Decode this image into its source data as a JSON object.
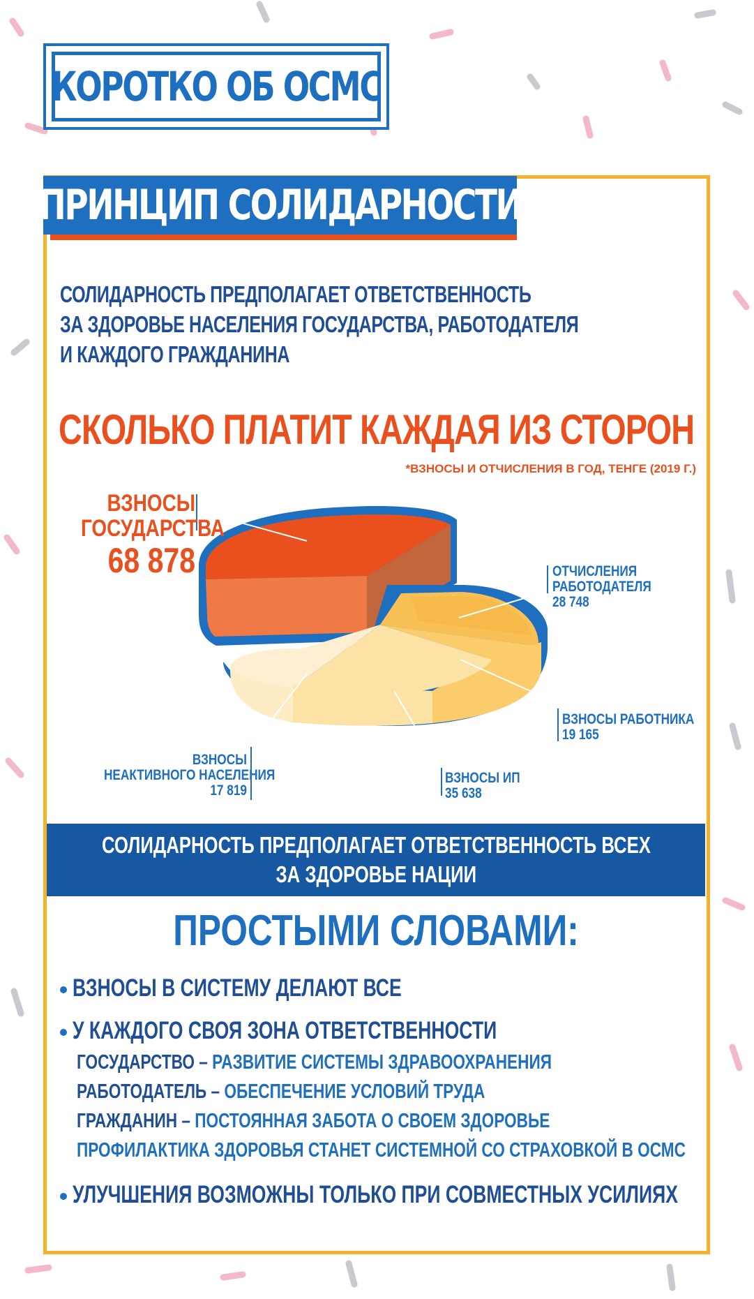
{
  "header": {
    "title": "КОРОТКО ОБ ОСМС"
  },
  "section": {
    "title": "ПРИНЦИП СОЛИДАРНОСТИ"
  },
  "intro": {
    "lines": [
      "СОЛИДАРНОСТЬ ПРЕДПОЛАГАЕТ ОТВЕТСТВЕННОСТЬ",
      "ЗА ЗДОРОВЬЕ НАСЕЛЕНИЯ ГОСУДАРСТВА, РАБОТОДАТЕЛЯ",
      "И КАЖДОГО ГРАЖДАНИНА"
    ]
  },
  "chart_data": {
    "type": "pie",
    "title": "СКОЛЬКО ПЛАТИТ КАЖДАЯ ИЗ СТОРОН",
    "subtitle": "*ВЗНОСЫ И ОТЧИСЛЕНИЯ В ГОД, ТЕНГЕ (2019 Г.)",
    "slices": [
      {
        "label_lines": [
          "ВЗНОСЫ",
          "ГОСУДАРСТВА"
        ],
        "value_text": "68 878",
        "value": 68878,
        "color": "#e9501d",
        "exploded": true
      },
      {
        "label_lines": [
          "ОТЧИСЛЕНИЯ",
          "РАБОТОДАТЕЛЯ"
        ],
        "value_text": "28 748",
        "value": 28748,
        "color": "#f9c055"
      },
      {
        "label_lines": [
          "ВЗНОСЫ РАБОТНИКА"
        ],
        "value_text": "19 165",
        "value": 19165,
        "color": "#fbcc6b"
      },
      {
        "label_lines": [
          "ВЗНОСЫ ИП"
        ],
        "value_text": "35 638",
        "value": 35638,
        "color": "#fde2a6"
      },
      {
        "label_lines": [
          "ВЗНОСЫ",
          "НЕАКТИВНОГО НАСЕЛЕНИЯ"
        ],
        "value_text": "17 819",
        "value": 17819,
        "color": "#feecc4"
      }
    ],
    "legend": "none"
  },
  "banner": {
    "lines": [
      "СОЛИДАРНОСТЬ ПРЕДПОЛАГАЕТ ОТВЕТСТВЕННОСТЬ ВСЕХ",
      "ЗА ЗДОРОВЬЕ НАЦИИ"
    ]
  },
  "simple": {
    "title": "ПРОСТЫМИ СЛОВАМИ:",
    "bullet1": "ВЗНОСЫ В СИСТЕМУ ДЕЛАЮТ ВСЕ",
    "bullet2": "У КАЖДОГО СВОЯ ЗОНА ОТВЕТСТВЕННОСТИ",
    "responsibilities": [
      {
        "key": "ГОСУДАРСТВО – ",
        "value": "РАЗВИТИЕ СИСТЕМЫ ЗДРАВООХРАНЕНИЯ"
      },
      {
        "key": "РАБОТОДАТЕЛЬ – ",
        "value": "ОБЕСПЕЧЕНИЕ УСЛОВИЙ ТРУДА"
      },
      {
        "key": "ГРАЖДАНИН – ",
        "value": "ПОСТОЯННАЯ ЗАБОТА О СВОЕМ ЗДОРОВЬЕ"
      }
    ],
    "prevention": "ПРОФИЛАКТИКА ЗДОРОВЬЯ СТАНЕТ СИСТЕМНОЙ СО СТРАХОВКОЙ В ОСМС",
    "bullet3": "УЛУЧШЕНИЯ ВОЗМОЖНЫ ТОЛЬКО ПРИ СОВМЕСТНЫХ УСИЛИЯХ"
  },
  "colors": {
    "blue": "#1e6fc0",
    "navy": "#1f4e96",
    "orange": "#e9501d",
    "gold": "#f7b02a"
  }
}
